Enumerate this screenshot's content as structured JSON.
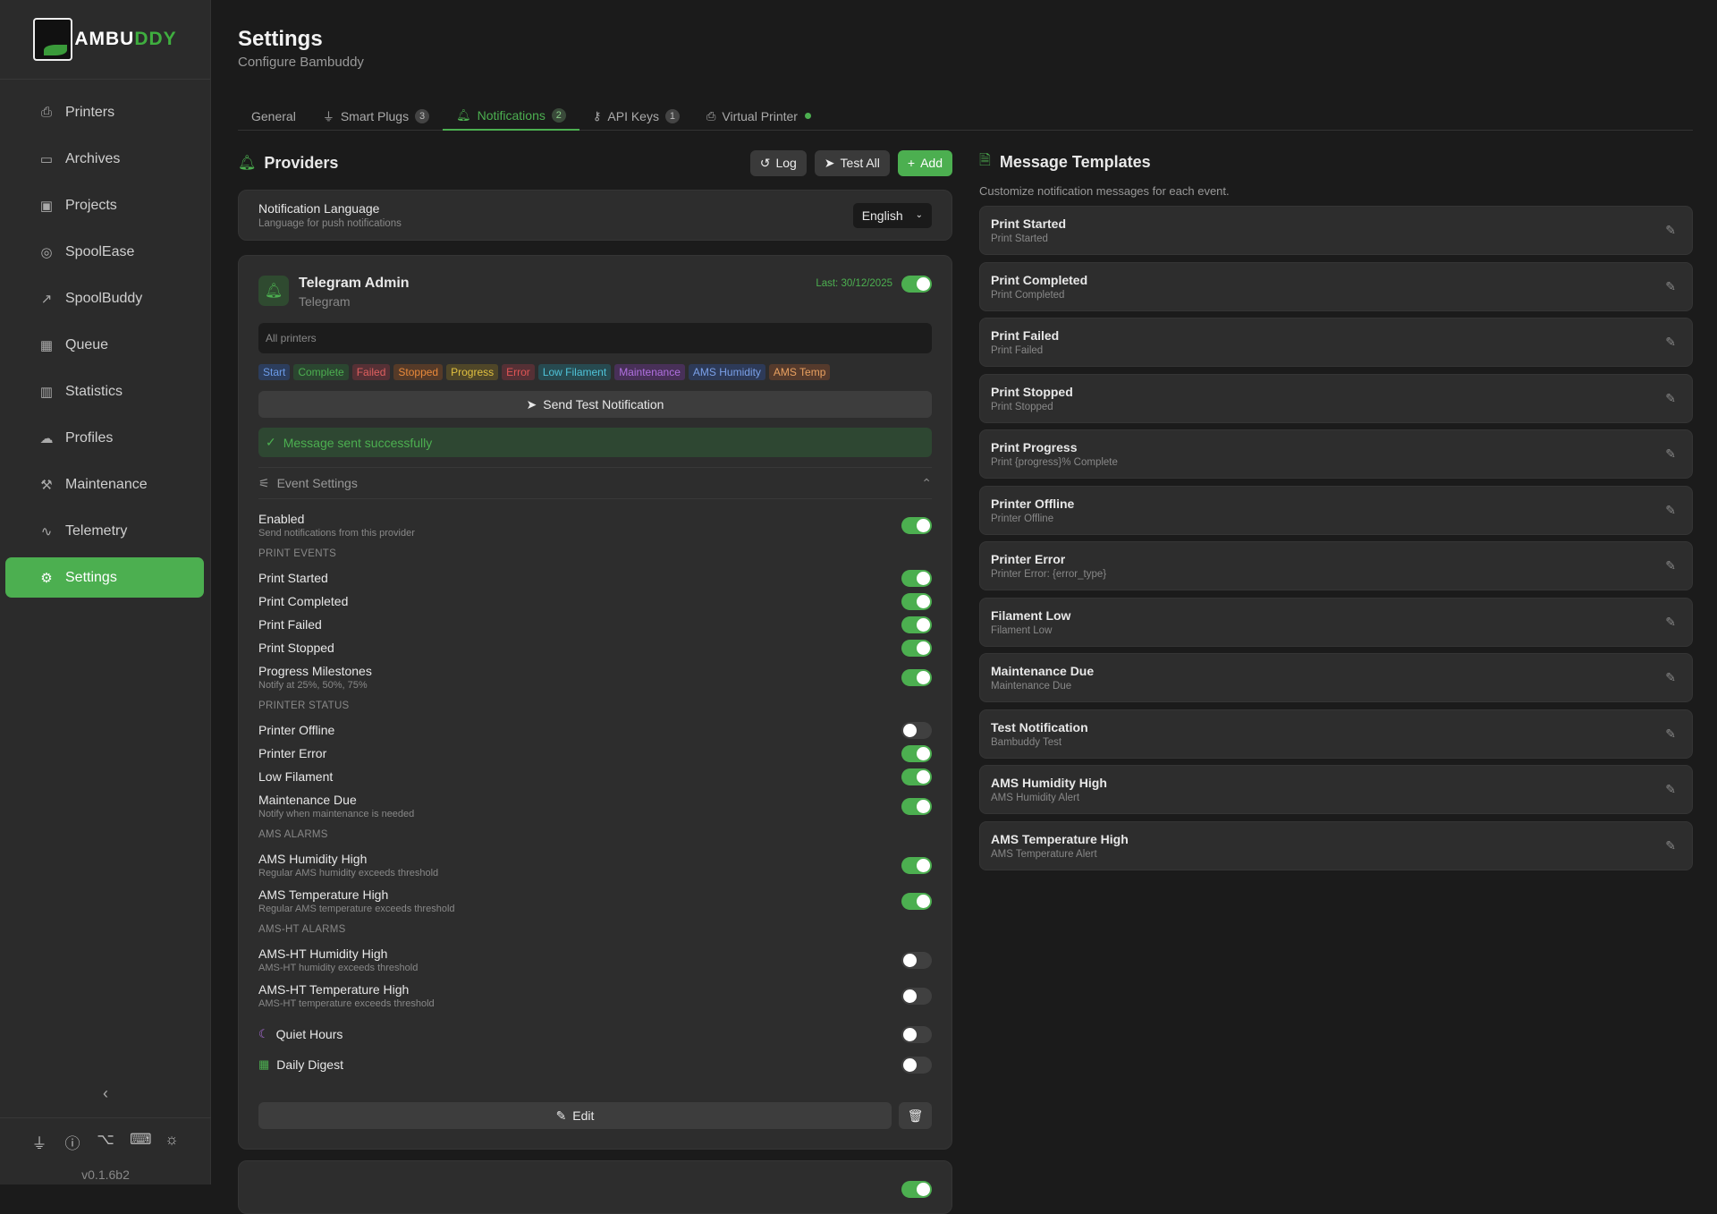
{
  "brand": {
    "logo_text": "BAMBUDDY",
    "version": "v0.1.6b2"
  },
  "sidebar": {
    "items": [
      {
        "label": "Printers",
        "icon": "printer-icon",
        "glyph": "⎙"
      },
      {
        "label": "Archives",
        "icon": "archive-icon",
        "glyph": "▭"
      },
      {
        "label": "Projects",
        "icon": "folder-icon",
        "glyph": "▣"
      },
      {
        "label": "SpoolEase",
        "icon": "spool-icon",
        "glyph": "◎"
      },
      {
        "label": "SpoolBuddy",
        "icon": "external-link-icon",
        "glyph": "↗"
      },
      {
        "label": "Queue",
        "icon": "calendar-icon",
        "glyph": "▦"
      },
      {
        "label": "Statistics",
        "icon": "bar-chart-icon",
        "glyph": "▥"
      },
      {
        "label": "Profiles",
        "icon": "cloud-icon",
        "glyph": "☁"
      },
      {
        "label": "Maintenance",
        "icon": "wrench-icon",
        "glyph": "⚒"
      },
      {
        "label": "Telemetry",
        "icon": "activity-icon",
        "glyph": "∿"
      },
      {
        "label": "Settings",
        "icon": "gear-icon",
        "glyph": "⚙",
        "active": true
      }
    ]
  },
  "header": {
    "title": "Settings",
    "subtitle": "Configure Bambuddy"
  },
  "tabs": [
    {
      "label": "General"
    },
    {
      "label": "Smart Plugs",
      "count": "3"
    },
    {
      "label": "Notifications",
      "count": "2",
      "active": true
    },
    {
      "label": "API Keys",
      "count": "1"
    },
    {
      "label": "Virtual Printer",
      "status": "active"
    }
  ],
  "providers": {
    "title": "Providers",
    "log": "Log",
    "test_all": "Test All",
    "add": "Add",
    "language": {
      "label": "Notification Language",
      "desc": "Language for push notifications",
      "value": "English"
    },
    "provider": {
      "name": "Telegram Admin",
      "type": "Telegram",
      "last": "Last: 30/12/2025",
      "enabled": {
        "label": "Enabled",
        "desc": "Send notifications from this provider",
        "on": true
      },
      "printers": "All printers",
      "tags": [
        {
          "label": "Start",
          "fg": "#6b9be8",
          "bg": "#2c3d5c"
        },
        {
          "label": "Complete",
          "fg": "#4caf50",
          "bg": "#2b4630"
        },
        {
          "label": "Failed",
          "fg": "#e06060",
          "bg": "#553035"
        },
        {
          "label": "Stopped",
          "fg": "#e8893a",
          "bg": "#553a28"
        },
        {
          "label": "Progress",
          "fg": "#e0c040",
          "bg": "#4f4628"
        },
        {
          "label": "Error",
          "fg": "#e05555",
          "bg": "#553035"
        },
        {
          "label": "Low Filament",
          "fg": "#4fc3d8",
          "bg": "#274a50"
        },
        {
          "label": "Maintenance",
          "fg": "#b070e0",
          "bg": "#483058"
        },
        {
          "label": "AMS Humidity",
          "fg": "#7aa0e8",
          "bg": "#2d3a58"
        },
        {
          "label": "AMS Temp",
          "fg": "#e8a060",
          "bg": "#553a2c"
        }
      ],
      "send_test": "Send Test Notification",
      "success": "Message sent successfully",
      "event_settings": "Event Settings",
      "sections": [
        {
          "title": "PRINT EVENTS",
          "rows": [
            {
              "label": "Print Started",
              "on": true
            },
            {
              "label": "Print Completed",
              "on": true
            },
            {
              "label": "Print Failed",
              "on": true
            },
            {
              "label": "Print Stopped",
              "on": true
            },
            {
              "label": "Progress Milestones",
              "desc": "Notify at 25%, 50%, 75%",
              "on": true
            }
          ]
        },
        {
          "title": "PRINTER STATUS",
          "rows": [
            {
              "label": "Printer Offline",
              "on": false
            },
            {
              "label": "Printer Error",
              "on": true
            },
            {
              "label": "Low Filament",
              "on": true
            },
            {
              "label": "Maintenance Due",
              "desc": "Notify when maintenance is needed",
              "on": true
            }
          ]
        },
        {
          "title": "AMS ALARMS",
          "rows": [
            {
              "label": "AMS Humidity High",
              "desc": "Regular AMS humidity exceeds threshold",
              "on": true
            },
            {
              "label": "AMS Temperature High",
              "desc": "Regular AMS temperature exceeds threshold",
              "on": true
            }
          ]
        },
        {
          "title": "AMS-HT ALARMS",
          "rows": [
            {
              "label": "AMS-HT Humidity High",
              "desc": "AMS-HT humidity exceeds threshold",
              "on": false
            },
            {
              "label": "AMS-HT Temperature High",
              "desc": "AMS-HT temperature exceeds threshold",
              "on": false
            }
          ]
        }
      ],
      "quiet_hours": {
        "label": "Quiet Hours",
        "on": false
      },
      "daily_digest": {
        "label": "Daily Digest",
        "on": false
      },
      "edit": "Edit"
    },
    "second_provider_enabled": true
  },
  "templates": {
    "title": "Message Templates",
    "subtitle": "Customize notification messages for each event.",
    "items": [
      {
        "name": "Print Started",
        "sample": "Print Started"
      },
      {
        "name": "Print Completed",
        "sample": "Print Completed"
      },
      {
        "name": "Print Failed",
        "sample": "Print Failed"
      },
      {
        "name": "Print Stopped",
        "sample": "Print Stopped"
      },
      {
        "name": "Print Progress",
        "sample": "Print {progress}% Complete"
      },
      {
        "name": "Printer Offline",
        "sample": "Printer Offline"
      },
      {
        "name": "Printer Error",
        "sample": "Printer Error: {error_type}"
      },
      {
        "name": "Filament Low",
        "sample": "Filament Low"
      },
      {
        "name": "Maintenance Due",
        "sample": "Maintenance Due"
      },
      {
        "name": "Test Notification",
        "sample": "Bambuddy Test"
      },
      {
        "name": "AMS Humidity High",
        "sample": "AMS Humidity Alert"
      },
      {
        "name": "AMS Temperature High",
        "sample": "AMS Temperature Alert"
      }
    ]
  },
  "colors": {
    "accent": "#4caf50",
    "background": "#1b1b1b",
    "sidebar": "#2b2b2b",
    "card": "#2d2d2d"
  }
}
